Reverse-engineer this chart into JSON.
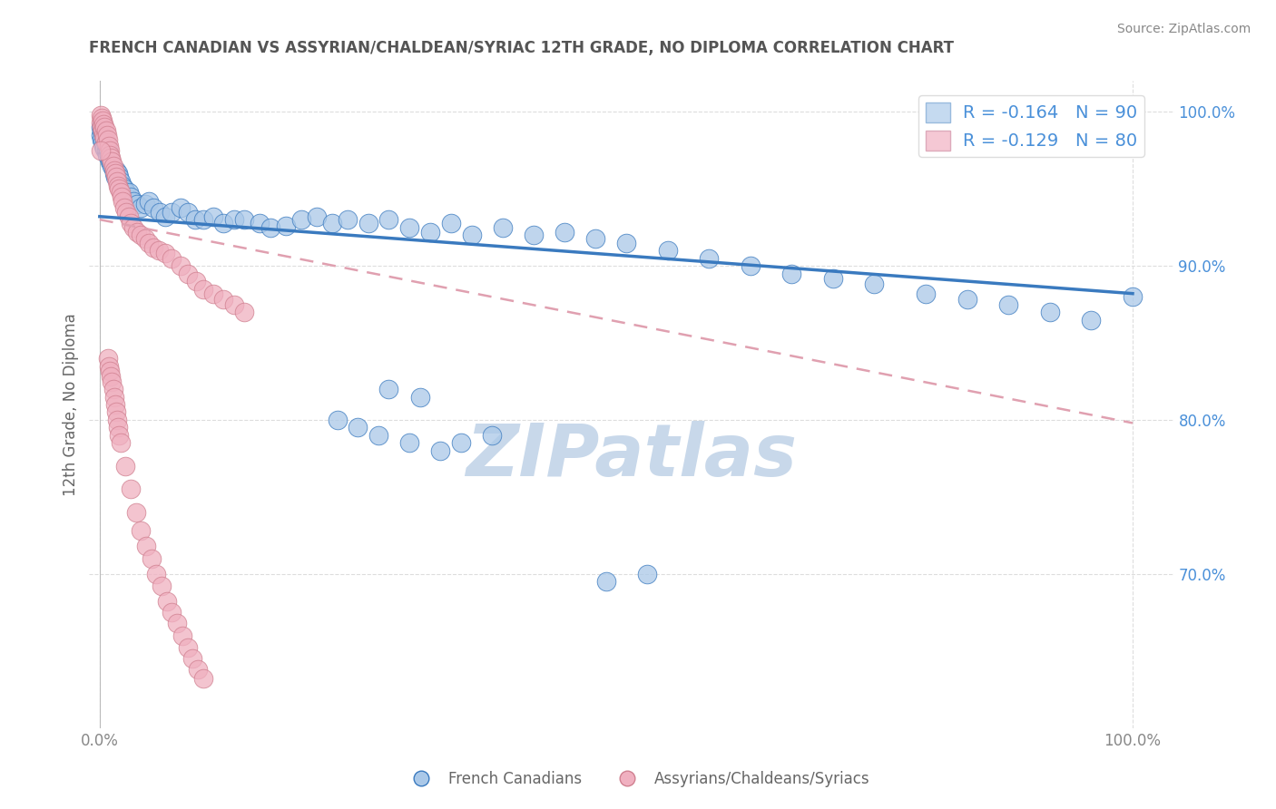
{
  "title": "FRENCH CANADIAN VS ASSYRIAN/CHALDEAN/SYRIAC 12TH GRADE, NO DIPLOMA CORRELATION CHART",
  "source": "Source: ZipAtlas.com",
  "ylabel": "12th Grade, No Diploma",
  "blue_label": "French Canadians",
  "pink_label": "Assyrians/Chaldeans/Syriacs",
  "blue_R": -0.164,
  "blue_N": 90,
  "pink_R": -0.129,
  "pink_N": 80,
  "blue_color": "#aac8e8",
  "pink_color": "#f0b0c0",
  "blue_line_color": "#3a7abf",
  "pink_line_color": "#d08090",
  "background_color": "#ffffff",
  "grid_color": "#dddddd",
  "watermark": "ZIPatlas",
  "watermark_color": "#c8d8ea",
  "blue_x": [
    0.001,
    0.001,
    0.002,
    0.002,
    0.003,
    0.003,
    0.004,
    0.004,
    0.005,
    0.005,
    0.006,
    0.006,
    0.007,
    0.007,
    0.008,
    0.009,
    0.01,
    0.01,
    0.011,
    0.012,
    0.013,
    0.014,
    0.015,
    0.016,
    0.018,
    0.019,
    0.02,
    0.022,
    0.024,
    0.026,
    0.028,
    0.03,
    0.033,
    0.036,
    0.04,
    0.044,
    0.048,
    0.052,
    0.058,
    0.063,
    0.07,
    0.078,
    0.085,
    0.092,
    0.1,
    0.11,
    0.12,
    0.13,
    0.14,
    0.155,
    0.165,
    0.18,
    0.195,
    0.21,
    0.225,
    0.24,
    0.26,
    0.28,
    0.3,
    0.32,
    0.34,
    0.36,
    0.39,
    0.42,
    0.45,
    0.48,
    0.51,
    0.55,
    0.59,
    0.63,
    0.67,
    0.71,
    0.75,
    0.8,
    0.84,
    0.88,
    0.92,
    0.96,
    0.49,
    0.53,
    0.23,
    0.25,
    0.27,
    0.3,
    0.33,
    0.28,
    0.31,
    0.35,
    0.38,
    1.0
  ],
  "blue_y": [
    0.99,
    0.985,
    0.988,
    0.982,
    0.987,
    0.98,
    0.985,
    0.978,
    0.983,
    0.976,
    0.98,
    0.975,
    0.978,
    0.972,
    0.975,
    0.972,
    0.97,
    0.968,
    0.968,
    0.965,
    0.963,
    0.96,
    0.958,
    0.962,
    0.96,
    0.958,
    0.955,
    0.952,
    0.95,
    0.948,
    0.948,
    0.945,
    0.942,
    0.94,
    0.938,
    0.94,
    0.942,
    0.938,
    0.935,
    0.932,
    0.935,
    0.938,
    0.935,
    0.93,
    0.93,
    0.932,
    0.928,
    0.93,
    0.93,
    0.928,
    0.925,
    0.926,
    0.93,
    0.932,
    0.928,
    0.93,
    0.928,
    0.93,
    0.925,
    0.922,
    0.928,
    0.92,
    0.925,
    0.92,
    0.922,
    0.918,
    0.915,
    0.91,
    0.905,
    0.9,
    0.895,
    0.892,
    0.888,
    0.882,
    0.878,
    0.875,
    0.87,
    0.865,
    0.695,
    0.7,
    0.8,
    0.795,
    0.79,
    0.785,
    0.78,
    0.82,
    0.815,
    0.785,
    0.79,
    0.88
  ],
  "pink_x": [
    0.001,
    0.001,
    0.002,
    0.002,
    0.003,
    0.003,
    0.004,
    0.004,
    0.005,
    0.005,
    0.006,
    0.006,
    0.007,
    0.008,
    0.009,
    0.01,
    0.01,
    0.011,
    0.012,
    0.013,
    0.014,
    0.015,
    0.016,
    0.017,
    0.018,
    0.019,
    0.02,
    0.021,
    0.022,
    0.024,
    0.026,
    0.028,
    0.03,
    0.033,
    0.036,
    0.04,
    0.044,
    0.048,
    0.052,
    0.057,
    0.063,
    0.07,
    0.078,
    0.085,
    0.093,
    0.1,
    0.11,
    0.12,
    0.13,
    0.14,
    0.008,
    0.009,
    0.01,
    0.011,
    0.012,
    0.013,
    0.014,
    0.015,
    0.016,
    0.017,
    0.018,
    0.019,
    0.02,
    0.025,
    0.03,
    0.035,
    0.04,
    0.045,
    0.05,
    0.055,
    0.06,
    0.065,
    0.07,
    0.075,
    0.08,
    0.085,
    0.09,
    0.095,
    0.1,
    0.001
  ],
  "pink_y": [
    0.998,
    0.993,
    0.996,
    0.99,
    0.994,
    0.988,
    0.992,
    0.985,
    0.99,
    0.983,
    0.988,
    0.98,
    0.985,
    0.982,
    0.978,
    0.975,
    0.972,
    0.97,
    0.968,
    0.965,
    0.962,
    0.96,
    0.958,
    0.955,
    0.952,
    0.95,
    0.948,
    0.945,
    0.942,
    0.938,
    0.935,
    0.932,
    0.928,
    0.925,
    0.922,
    0.92,
    0.918,
    0.915,
    0.912,
    0.91,
    0.908,
    0.905,
    0.9,
    0.895,
    0.89,
    0.885,
    0.882,
    0.878,
    0.875,
    0.87,
    0.84,
    0.835,
    0.832,
    0.828,
    0.825,
    0.82,
    0.815,
    0.81,
    0.805,
    0.8,
    0.795,
    0.79,
    0.785,
    0.77,
    0.755,
    0.74,
    0.728,
    0.718,
    0.71,
    0.7,
    0.692,
    0.682,
    0.675,
    0.668,
    0.66,
    0.652,
    0.645,
    0.638,
    0.632,
    0.975
  ],
  "blue_trend_x0": 0.0,
  "blue_trend_x1": 1.0,
  "blue_trend_y0": 0.932,
  "blue_trend_y1": 0.882,
  "pink_trend_x0": 0.0,
  "pink_trend_x1": 1.0,
  "pink_trend_y0": 0.93,
  "pink_trend_y1": 0.798,
  "ylim_min": 0.6,
  "ylim_max": 1.02,
  "xlim_min": -0.01,
  "xlim_max": 1.04,
  "yticks": [
    0.7,
    0.8,
    0.9,
    1.0
  ],
  "ytick_labels": [
    "70.0%",
    "80.0%",
    "90.0%",
    "100.0%"
  ],
  "xtick_positions": [
    0.0,
    1.0
  ],
  "xtick_labels": [
    "0.0%",
    "100.0%"
  ]
}
